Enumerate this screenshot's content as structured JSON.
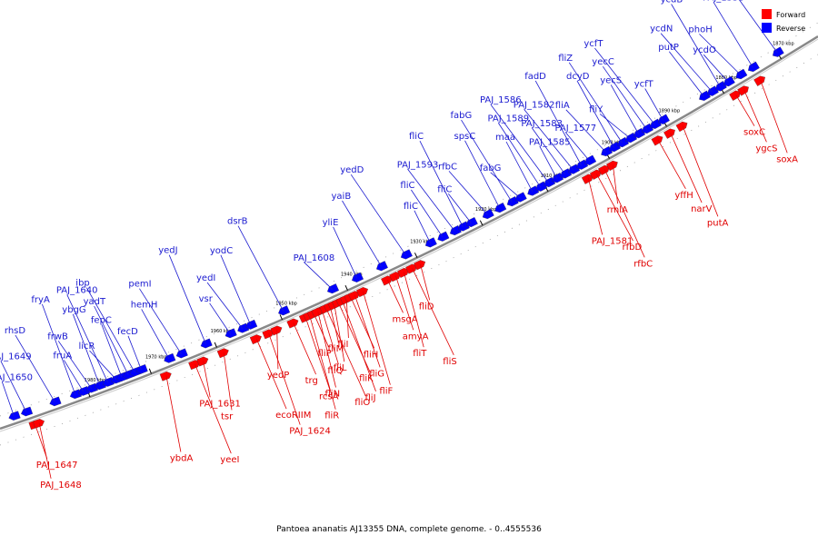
{
  "caption": "Pantoea ananatis AJ13355 DNA, complete genome. - 0..4555536",
  "legend": [
    {
      "label": "Forward",
      "color": "#ff0000"
    },
    {
      "label": "Reverse",
      "color": "#0000ff"
    }
  ],
  "colors": {
    "forward": "#ff0000",
    "reverse": "#0000ff",
    "backbone": "#777777"
  },
  "ticks": [
    {
      "label": "1980 kbp",
      "t": 0.11
    },
    {
      "label": "1970 kbp",
      "t": 0.185
    },
    {
      "label": "1960 kbp",
      "t": 0.265
    },
    {
      "label": "1950 kbp",
      "t": 0.345
    },
    {
      "label": "1940 kbp",
      "t": 0.425
    },
    {
      "label": "1930 kbp",
      "t": 0.51
    },
    {
      "label": "1920 kbp",
      "t": 0.59
    },
    {
      "label": "1910 kbp",
      "t": 0.67
    },
    {
      "label": "1900 kbp",
      "t": 0.745
    },
    {
      "label": "1890 kbp",
      "t": 0.815
    },
    {
      "label": "1880 kbp",
      "t": 0.885
    },
    {
      "label": "1870 kbp",
      "t": 0.955
    }
  ],
  "genes_reverse": [
    {
      "name": "PAJ_1650",
      "t": 0.02
    },
    {
      "name": "PAJ_1649",
      "t": 0.035
    },
    {
      "name": "rhsD",
      "t": 0.07
    },
    {
      "name": "fryA",
      "t": 0.095
    },
    {
      "name": "fruA",
      "t": 0.105
    },
    {
      "name": "frwB",
      "t": 0.115
    },
    {
      "name": "ybgG",
      "t": 0.125
    },
    {
      "name": "PAJ_1640",
      "t": 0.135
    },
    {
      "name": "licR",
      "t": 0.145
    },
    {
      "name": "fepC",
      "t": 0.152
    },
    {
      "name": "yadT",
      "t": 0.16
    },
    {
      "name": "ibp",
      "t": 0.168
    },
    {
      "name": "fecD",
      "t": 0.176
    },
    {
      "name": "hemH",
      "t": 0.21
    },
    {
      "name": "pemI",
      "t": 0.225
    },
    {
      "name": "yedJ",
      "t": 0.255
    },
    {
      "name": "vsr",
      "t": 0.285
    },
    {
      "name": "yedI",
      "t": 0.3
    },
    {
      "name": "yodC",
      "t": 0.31
    },
    {
      "name": "dsrB",
      "t": 0.35
    },
    {
      "name": "PAJ_1608",
      "t": 0.41
    },
    {
      "name": "yliE",
      "t": 0.44
    },
    {
      "name": "yaiB",
      "t": 0.47
    },
    {
      "name": "yedD",
      "t": 0.5
    },
    {
      "name": "fliC",
      "t": 0.53
    },
    {
      "name": "fliC",
      "t": 0.545
    },
    {
      "name": "PAJ_1593",
      "t": 0.56
    },
    {
      "name": "fliC",
      "t": 0.57
    },
    {
      "name": "fliC",
      "t": 0.58
    },
    {
      "name": "rfbC",
      "t": 0.6
    },
    {
      "name": "spsC",
      "t": 0.615
    },
    {
      "name": "fabG",
      "t": 0.63
    },
    {
      "name": "fabG",
      "t": 0.64
    },
    {
      "name": "maa",
      "t": 0.655
    },
    {
      "name": "PAJ_1589",
      "t": 0.665
    },
    {
      "name": "PAJ_1586",
      "t": 0.675
    },
    {
      "name": "PAJ_1585",
      "t": 0.685
    },
    {
      "name": "PAJ_1583",
      "t": 0.695
    },
    {
      "name": "PAJ_1582",
      "t": 0.705
    },
    {
      "name": "fadD",
      "t": 0.715
    },
    {
      "name": "PAJ_1577",
      "t": 0.725
    },
    {
      "name": "fliA",
      "t": 0.745
    },
    {
      "name": "dcyD",
      "t": 0.755
    },
    {
      "name": "fliZ",
      "t": 0.765
    },
    {
      "name": "fliY",
      "t": 0.775
    },
    {
      "name": "yecS",
      "t": 0.785
    },
    {
      "name": "yecC",
      "t": 0.795
    },
    {
      "name": "ycfT",
      "t": 0.805
    },
    {
      "name": "ycfT",
      "t": 0.815
    },
    {
      "name": "putP",
      "t": 0.865
    },
    {
      "name": "ycdN",
      "t": 0.875
    },
    {
      "name": "ycdB",
      "t": 0.885
    },
    {
      "name": "ycdO",
      "t": 0.895
    },
    {
      "name": "phoH",
      "t": 0.91
    },
    {
      "name": "PAJ_1558",
      "t": 0.925
    },
    {
      "name": "flbD",
      "t": 0.955
    }
  ],
  "genes_forward": [
    {
      "name": "PAJ_1647",
      "t": 0.04
    },
    {
      "name": "PAJ_1648",
      "t": 0.045
    },
    {
      "name": "ybdA",
      "t": 0.2
    },
    {
      "name": "yeeI",
      "t": 0.235
    },
    {
      "name": "PAJ_1631",
      "t": 0.245
    },
    {
      "name": "tsr",
      "t": 0.27
    },
    {
      "name": "ecoRIIM",
      "t": 0.31
    },
    {
      "name": "PAJ_1624",
      "t": 0.325
    },
    {
      "name": "yedP",
      "t": 0.335
    },
    {
      "name": "trg",
      "t": 0.355
    },
    {
      "name": "rcsA",
      "t": 0.37
    },
    {
      "name": "fliR",
      "t": 0.375
    },
    {
      "name": "fliP",
      "t": 0.38
    },
    {
      "name": "fliQ",
      "t": 0.39
    },
    {
      "name": "fliN",
      "t": 0.385
    },
    {
      "name": "fliO",
      "t": 0.395
    },
    {
      "name": "fliM",
      "t": 0.4
    },
    {
      "name": "fliL",
      "t": 0.405
    },
    {
      "name": "fliK",
      "t": 0.41
    },
    {
      "name": "fliJ",
      "t": 0.415
    },
    {
      "name": "fliI",
      "t": 0.42
    },
    {
      "name": "fliH",
      "t": 0.425
    },
    {
      "name": "fliG",
      "t": 0.43
    },
    {
      "name": "fliF",
      "t": 0.44
    },
    {
      "name": "msgA",
      "t": 0.47
    },
    {
      "name": "amyA",
      "t": 0.48
    },
    {
      "name": "fliT",
      "t": 0.49
    },
    {
      "name": "fliS",
      "t": 0.5
    },
    {
      "name": "fliD",
      "t": 0.51
    },
    {
      "name": "PAJ_1581",
      "t": 0.715
    },
    {
      "name": "rfbD",
      "t": 0.725
    },
    {
      "name": "rfbC",
      "t": 0.735
    },
    {
      "name": "rmlA",
      "t": 0.745
    },
    {
      "name": "yffH",
      "t": 0.8
    },
    {
      "name": "narV",
      "t": 0.815
    },
    {
      "name": "putA",
      "t": 0.83
    },
    {
      "name": "soxC",
      "t": 0.895
    },
    {
      "name": "ygcS",
      "t": 0.905
    },
    {
      "name": "soxA",
      "t": 0.925
    }
  ]
}
